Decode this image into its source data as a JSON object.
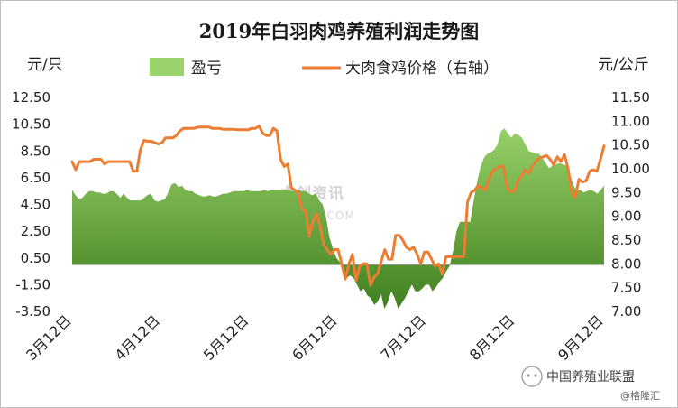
{
  "chart_data": {
    "type": "area-line-dual-axis",
    "title": "2019年白羽肉鸡养殖利润走势图",
    "left_unit": "元/只",
    "right_unit": "元/公斤",
    "x_ticks": [
      "3月12日",
      "4月12日",
      "5月12日",
      "6月12日",
      "7月12日",
      "8月12日",
      "9月12日"
    ],
    "y_left": {
      "min": -3.5,
      "max": 12.5,
      "ticks": [
        "12.50",
        "10.50",
        "8.50",
        "6.50",
        "4.50",
        "2.50",
        "0.50",
        "-1.50",
        "-3.50"
      ]
    },
    "y_right": {
      "min": 7.0,
      "max": 11.5,
      "ticks": [
        "11.50",
        "11.00",
        "10.50",
        "10.00",
        "9.50",
        "9.00",
        "8.50",
        "8.00",
        "7.50",
        "7.00"
      ]
    },
    "series": [
      {
        "name": "盈亏",
        "axis": "left",
        "style": "area",
        "color_top": "#9bd36b",
        "color_bottom": "#3e7f1e",
        "values": [
          5.6,
          5.2,
          4.9,
          5.0,
          5.3,
          5.5,
          5.5,
          5.4,
          5.4,
          5.3,
          5.3,
          5.5,
          5.5,
          5.3,
          5.0,
          5.3,
          5.0,
          4.8,
          4.8,
          4.8,
          4.8,
          5.0,
          5.2,
          5.3,
          4.8,
          4.7,
          4.8,
          4.9,
          5.4,
          6.0,
          6.1,
          5.8,
          5.9,
          5.6,
          5.5,
          5.5,
          5.3,
          5.2,
          5.1,
          5.1,
          5.2,
          5.1,
          5.1,
          5.2,
          5.3,
          5.3,
          5.4,
          5.5,
          5.5,
          5.5,
          5.5,
          5.6,
          5.5,
          5.5,
          5.5,
          5.5,
          5.6,
          5.5,
          5.6,
          5.6,
          5.6,
          5.6,
          5.6,
          5.6,
          5.5,
          5.5,
          5.6,
          5.5,
          5.5,
          5.3,
          5.2,
          5.3,
          4.8,
          4.5,
          3.5,
          2.0,
          1.2,
          0.5,
          0.2,
          -0.5,
          -1.0,
          -0.8,
          -1.0,
          -1.5,
          -2.0,
          -1.8,
          -2.3,
          -2.5,
          -3.0,
          -2.8,
          -2.2,
          -3.3,
          -2.8,
          -2.0,
          -2.5,
          -3.3,
          -2.9,
          -2.5,
          -2.0,
          -1.5,
          -2.0,
          -2.0,
          -1.8,
          -1.5,
          -1.5,
          -2.0,
          -1.7,
          -1.3,
          -1.0,
          -0.5,
          -0.1,
          1.0,
          2.5,
          3.2,
          3.2,
          3.2,
          3.2,
          4.8,
          6.2,
          7.3,
          8.0,
          8.3,
          8.4,
          8.6,
          9.0,
          10.0,
          10.2,
          9.8,
          9.5,
          9.8,
          9.7,
          9.5,
          9.0,
          8.5,
          8.4,
          8.3,
          8.3,
          8.0,
          7.6,
          7.2,
          7.4,
          7.5,
          7.6,
          7.5,
          7.4,
          6.8,
          6.0,
          5.5,
          5.6,
          5.4,
          5.5,
          5.6,
          5.5,
          5.3,
          5.6,
          5.9
        ]
      },
      {
        "name": "大肉食鸡价格（右轴）",
        "axis": "right",
        "style": "line",
        "color": "#ed7d31",
        "values": [
          10.15,
          9.98,
          10.15,
          10.15,
          10.15,
          10.15,
          10.2,
          10.2,
          10.2,
          10.1,
          10.15,
          10.15,
          10.15,
          10.15,
          10.15,
          10.15,
          10.15,
          9.95,
          9.95,
          10.4,
          10.6,
          10.58,
          10.58,
          10.55,
          10.52,
          10.55,
          10.65,
          10.65,
          10.65,
          10.7,
          10.8,
          10.85,
          10.85,
          10.85,
          10.85,
          10.88,
          10.88,
          10.88,
          10.88,
          10.85,
          10.85,
          10.85,
          10.83,
          10.83,
          10.83,
          10.83,
          10.82,
          10.82,
          10.82,
          10.82,
          10.85,
          10.85,
          10.9,
          10.75,
          10.7,
          10.7,
          10.85,
          10.8,
          10.2,
          10.05,
          10.1,
          9.6,
          9.55,
          9.5,
          9.15,
          9.1,
          8.58,
          8.9,
          9.05,
          8.8,
          8.4,
          8.3,
          8.2,
          8.3,
          8.3,
          8.0,
          7.68,
          8.0,
          8.2,
          7.65,
          7.95,
          8.0,
          8.0,
          7.55,
          7.72,
          7.8,
          8.05,
          8.3,
          8.1,
          8.1,
          8.6,
          8.6,
          8.5,
          8.35,
          8.3,
          8.35,
          8.2,
          8.0,
          8.25,
          8.25,
          8.1,
          7.95,
          8.0,
          7.78,
          8.15,
          8.15,
          8.15,
          8.15,
          8.15,
          8.15,
          9.3,
          9.5,
          9.55,
          9.65,
          9.6,
          9.55,
          9.78,
          9.95,
          10.0,
          10.05,
          10.05,
          9.6,
          9.53,
          9.52,
          9.75,
          9.85,
          9.98,
          9.9,
          10.05,
          10.15,
          10.22,
          10.25,
          10.28,
          10.2,
          10.08,
          10.25,
          10.15,
          10.3,
          10.0,
          9.5,
          9.4,
          9.78,
          9.72,
          9.75,
          9.95,
          9.98,
          9.95,
          10.2,
          10.48
        ]
      }
    ],
    "watermark": "卓创资讯",
    "watermark_sub": "SCI99.COM",
    "brand_text": "中国养殖业联盟",
    "brand_sub": "@格隆汇"
  }
}
